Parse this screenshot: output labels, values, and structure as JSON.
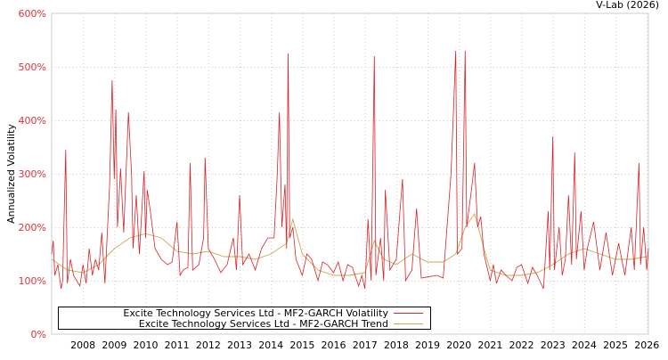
{
  "chart_data": {
    "type": "line",
    "title": "",
    "watermark": "V-Lab (2026)",
    "xlabel": "",
    "ylabel": "Annualized Volatility",
    "xlim": [
      2007.0,
      2026.05
    ],
    "ylim": [
      0,
      600
    ],
    "y_ticks": [
      0,
      100,
      200,
      300,
      400,
      500,
      600
    ],
    "y_tick_labels": [
      "0%",
      "100%",
      "200%",
      "300%",
      "400%",
      "500%",
      "600%"
    ],
    "x_ticks": [
      2008,
      2009,
      2010,
      2011,
      2012,
      2013,
      2014,
      2015,
      2016,
      2017,
      2018,
      2019,
      2020,
      2021,
      2022,
      2023,
      2024,
      2025,
      2026
    ],
    "x_tick_labels": [
      "2008",
      "2009",
      "2010",
      "2011",
      "2012",
      "2013",
      "2014",
      "2015",
      "2016",
      "2017",
      "2018",
      "2019",
      "2020",
      "2021",
      "2022",
      "2023",
      "2024",
      "2025",
      "2026"
    ],
    "grid": true,
    "legend_placement": "bottom-left",
    "series": [
      {
        "name": "Excite Technology Services Ltd - MF2-GARCH Volatility",
        "color": "#d8232a",
        "points": [
          [
            2007.0,
            150
          ],
          [
            2007.05,
            175
          ],
          [
            2007.1,
            110
          ],
          [
            2007.2,
            130
          ],
          [
            2007.3,
            85
          ],
          [
            2007.35,
            100
          ],
          [
            2007.45,
            345
          ],
          [
            2007.5,
            95
          ],
          [
            2007.6,
            140
          ],
          [
            2007.7,
            110
          ],
          [
            2007.8,
            100
          ],
          [
            2007.9,
            90
          ],
          [
            2008.0,
            130
          ],
          [
            2008.1,
            95
          ],
          [
            2008.2,
            160
          ],
          [
            2008.3,
            110
          ],
          [
            2008.4,
            140
          ],
          [
            2008.5,
            120
          ],
          [
            2008.6,
            190
          ],
          [
            2008.7,
            95
          ],
          [
            2008.85,
            280
          ],
          [
            2008.93,
            475
          ],
          [
            2009.0,
            290
          ],
          [
            2009.05,
            420
          ],
          [
            2009.1,
            200
          ],
          [
            2009.2,
            310
          ],
          [
            2009.3,
            190
          ],
          [
            2009.45,
            415
          ],
          [
            2009.55,
            300
          ],
          [
            2009.6,
            160
          ],
          [
            2009.7,
            260
          ],
          [
            2009.8,
            150
          ],
          [
            2009.95,
            305
          ],
          [
            2010.0,
            180
          ],
          [
            2010.05,
            270
          ],
          [
            2010.15,
            230
          ],
          [
            2010.3,
            160
          ],
          [
            2010.5,
            140
          ],
          [
            2010.7,
            130
          ],
          [
            2010.85,
            135
          ],
          [
            2011.0,
            210
          ],
          [
            2011.1,
            110
          ],
          [
            2011.2,
            120
          ],
          [
            2011.35,
            125
          ],
          [
            2011.42,
            320
          ],
          [
            2011.5,
            120
          ],
          [
            2011.7,
            130
          ],
          [
            2011.85,
            180
          ],
          [
            2011.9,
            330
          ],
          [
            2012.0,
            160
          ],
          [
            2012.2,
            140
          ],
          [
            2012.4,
            115
          ],
          [
            2012.6,
            130
          ],
          [
            2012.8,
            180
          ],
          [
            2012.9,
            120
          ],
          [
            2013.0,
            260
          ],
          [
            2013.1,
            130
          ],
          [
            2013.3,
            150
          ],
          [
            2013.5,
            120
          ],
          [
            2013.7,
            160
          ],
          [
            2013.9,
            180
          ],
          [
            2014.1,
            180
          ],
          [
            2014.2,
            295
          ],
          [
            2014.27,
            415
          ],
          [
            2014.35,
            200
          ],
          [
            2014.45,
            280
          ],
          [
            2014.5,
            160
          ],
          [
            2014.55,
            525
          ],
          [
            2014.6,
            180
          ],
          [
            2014.7,
            200
          ],
          [
            2014.8,
            140
          ],
          [
            2015.0,
            110
          ],
          [
            2015.15,
            150
          ],
          [
            2015.3,
            140
          ],
          [
            2015.5,
            100
          ],
          [
            2015.65,
            135
          ],
          [
            2015.8,
            130
          ],
          [
            2016.0,
            115
          ],
          [
            2016.15,
            135
          ],
          [
            2016.3,
            100
          ],
          [
            2016.45,
            130
          ],
          [
            2016.6,
            125
          ],
          [
            2016.8,
            90
          ],
          [
            2016.9,
            110
          ],
          [
            2017.0,
            85
          ],
          [
            2017.1,
            215
          ],
          [
            2017.2,
            100
          ],
          [
            2017.3,
            520
          ],
          [
            2017.35,
            110
          ],
          [
            2017.5,
            180
          ],
          [
            2017.6,
            100
          ],
          [
            2017.65,
            270
          ],
          [
            2017.8,
            120
          ],
          [
            2018.0,
            140
          ],
          [
            2018.2,
            290
          ],
          [
            2018.3,
            100
          ],
          [
            2018.5,
            120
          ],
          [
            2018.65,
            235
          ],
          [
            2018.8,
            105
          ],
          [
            2019.0,
            107
          ],
          [
            2019.3,
            110
          ],
          [
            2019.5,
            105
          ],
          [
            2019.75,
            300
          ],
          [
            2019.9,
            530
          ],
          [
            2019.95,
            150
          ],
          [
            2020.1,
            160
          ],
          [
            2020.2,
            530
          ],
          [
            2020.25,
            200
          ],
          [
            2020.4,
            270
          ],
          [
            2020.5,
            320
          ],
          [
            2020.6,
            200
          ],
          [
            2020.7,
            220
          ],
          [
            2020.8,
            150
          ],
          [
            2021.0,
            100
          ],
          [
            2021.1,
            130
          ],
          [
            2021.2,
            95
          ],
          [
            2021.35,
            120
          ],
          [
            2021.5,
            110
          ],
          [
            2021.7,
            100
          ],
          [
            2021.85,
            125
          ],
          [
            2022.0,
            130
          ],
          [
            2022.2,
            95
          ],
          [
            2022.35,
            125
          ],
          [
            2022.5,
            110
          ],
          [
            2022.7,
            85
          ],
          [
            2022.85,
            230
          ],
          [
            2022.9,
            120
          ],
          [
            2023.0,
            370
          ],
          [
            2023.05,
            120
          ],
          [
            2023.2,
            200
          ],
          [
            2023.3,
            110
          ],
          [
            2023.4,
            140
          ],
          [
            2023.5,
            260
          ],
          [
            2023.6,
            130
          ],
          [
            2023.7,
            340
          ],
          [
            2023.75,
            140
          ],
          [
            2023.9,
            230
          ],
          [
            2024.0,
            120
          ],
          [
            2024.1,
            160
          ],
          [
            2024.3,
            210
          ],
          [
            2024.5,
            120
          ],
          [
            2024.7,
            190
          ],
          [
            2024.9,
            110
          ],
          [
            2025.1,
            170
          ],
          [
            2025.3,
            110
          ],
          [
            2025.5,
            200
          ],
          [
            2025.6,
            120
          ],
          [
            2025.75,
            320
          ],
          [
            2025.8,
            130
          ],
          [
            2025.9,
            200
          ],
          [
            2026.0,
            120
          ],
          [
            2026.05,
            160
          ]
        ]
      },
      {
        "name": "Excite Technology Services Ltd - MF2-GARCH Trend",
        "color": "#c9a850",
        "points": [
          [
            2007.0,
            140
          ],
          [
            2007.5,
            120
          ],
          [
            2008.0,
            115
          ],
          [
            2008.5,
            130
          ],
          [
            2009.0,
            160
          ],
          [
            2009.5,
            180
          ],
          [
            2010.0,
            188
          ],
          [
            2010.5,
            180
          ],
          [
            2011.0,
            155
          ],
          [
            2011.5,
            150
          ],
          [
            2012.0,
            155
          ],
          [
            2012.5,
            145
          ],
          [
            2013.0,
            145
          ],
          [
            2013.5,
            140
          ],
          [
            2014.0,
            150
          ],
          [
            2014.5,
            170
          ],
          [
            2014.7,
            215
          ],
          [
            2015.0,
            150
          ],
          [
            2015.5,
            120
          ],
          [
            2016.0,
            110
          ],
          [
            2016.5,
            110
          ],
          [
            2017.0,
            115
          ],
          [
            2017.3,
            175
          ],
          [
            2017.6,
            140
          ],
          [
            2018.0,
            130
          ],
          [
            2018.5,
            150
          ],
          [
            2019.0,
            135
          ],
          [
            2019.5,
            135
          ],
          [
            2019.9,
            150
          ],
          [
            2020.2,
            200
          ],
          [
            2020.5,
            225
          ],
          [
            2020.8,
            160
          ],
          [
            2021.0,
            120
          ],
          [
            2021.5,
            110
          ],
          [
            2022.0,
            110
          ],
          [
            2022.5,
            115
          ],
          [
            2023.0,
            130
          ],
          [
            2023.5,
            150
          ],
          [
            2024.0,
            160
          ],
          [
            2024.5,
            150
          ],
          [
            2025.0,
            140
          ],
          [
            2025.5,
            140
          ],
          [
            2026.0,
            145
          ]
        ]
      }
    ]
  }
}
